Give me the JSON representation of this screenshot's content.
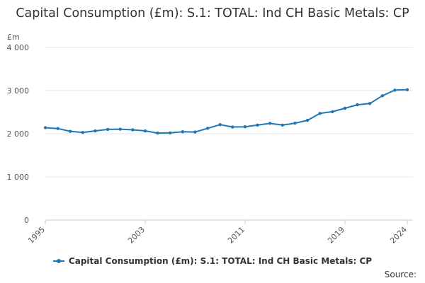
{
  "chart_data": {
    "type": "line",
    "title": "Capital Consumption (£m): S.1: TOTAL: Ind CH Basic Metals: CP",
    "ylabel": "£m",
    "xlabel": "",
    "ylim": [
      0,
      4000
    ],
    "yticks": [
      0,
      1000,
      2000,
      3000,
      4000
    ],
    "ytick_labels": [
      "0",
      "1 000",
      "2 000",
      "3 000",
      "4 000"
    ],
    "xlim": [
      1995,
      2024
    ],
    "xticks": [
      1995,
      2003,
      2011,
      2019,
      2024
    ],
    "xtick_labels": [
      "1995",
      "2003",
      "2011",
      "2019",
      "2024"
    ],
    "grid": true,
    "legend": "bottom",
    "series": [
      {
        "name": "Capital Consumption (£m): S.1: TOTAL: Ind CH Basic Metals: CP",
        "color": "#1f77b4",
        "x": [
          1995,
          1996,
          1997,
          1998,
          1999,
          2000,
          2001,
          2002,
          2003,
          2004,
          2005,
          2006,
          2007,
          2008,
          2009,
          2010,
          2011,
          2012,
          2013,
          2014,
          2015,
          2016,
          2017,
          2018,
          2019,
          2020,
          2021,
          2022,
          2023,
          2024
        ],
        "values": [
          2140,
          2120,
          2055,
          2030,
          2065,
          2100,
          2105,
          2090,
          2065,
          2015,
          2020,
          2045,
          2040,
          2125,
          2210,
          2155,
          2160,
          2200,
          2240,
          2200,
          2245,
          2310,
          2470,
          2510,
          2590,
          2670,
          2700,
          2880,
          3010,
          3020
        ]
      }
    ]
  },
  "source_label": "Source:"
}
